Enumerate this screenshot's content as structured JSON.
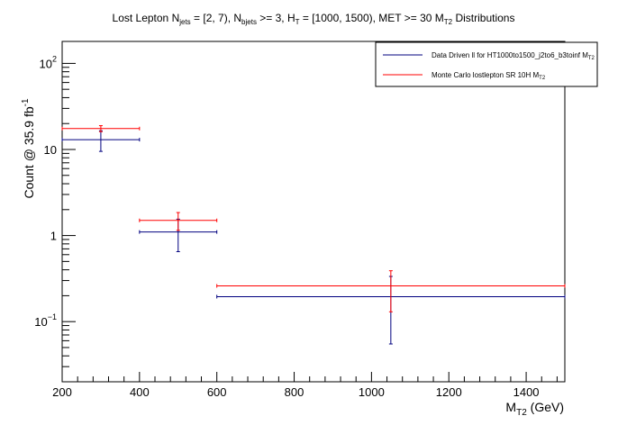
{
  "chart_data": {
    "type": "histogram-errorbars",
    "title": {
      "p1": "Lost Lepton N",
      "s1": "jets",
      "p2": " = [2, 7), N",
      "s2": "bjets",
      "p3": " >= 3, H",
      "s3": "T",
      "p4": " = [1000, 1500), MET >= 30 M",
      "s4": "T2",
      "p5": " Distributions"
    },
    "xlabel": {
      "main": "M",
      "sub": "T2",
      "unit": " (GeV)"
    },
    "ylabel": {
      "main": "Count @ 35.9 fb",
      "sup": "-1"
    },
    "xlim": [
      200,
      1500
    ],
    "ylim": [
      0.02,
      180
    ],
    "yscale": "log",
    "x_ticks": [
      "200",
      "400",
      "600",
      "800",
      "1000",
      "1200",
      "1400"
    ],
    "y_ticks": [
      {
        "value": 0.1,
        "base": "10",
        "exp": "−1"
      },
      {
        "value": 1,
        "base": "1",
        "exp": ""
      },
      {
        "value": 10,
        "base": "10",
        "exp": ""
      },
      {
        "value": 100,
        "base": "10",
        "exp": "2"
      }
    ],
    "series": [
      {
        "name": "Data Driven ll for HT1000to1500_j2to6_b3toinf M",
        "name_sub": "T2",
        "color": "#00007f",
        "bins": [
          {
            "xlow": 200,
            "xhigh": 400,
            "x": 300,
            "y": 13.0,
            "err_low": 3.5,
            "err_high": 3.5
          },
          {
            "xlow": 400,
            "xhigh": 600,
            "x": 500,
            "y": 1.1,
            "err_low": 0.45,
            "err_high": 0.45
          },
          {
            "xlow": 600,
            "xhigh": 1500,
            "x": 1050,
            "y": 0.195,
            "err_low": 0.14,
            "err_high": 0.14
          }
        ]
      },
      {
        "name": "Monte Carlo lostlepton SR 10H M",
        "name_sub": "T2",
        "color": "#ff0000",
        "bins": [
          {
            "xlow": 200,
            "xhigh": 400,
            "x": 300,
            "y": 17.5,
            "err_low": 1.4,
            "err_high": 1.4
          },
          {
            "xlow": 400,
            "xhigh": 600,
            "x": 500,
            "y": 1.5,
            "err_low": 0.35,
            "err_high": 0.35
          },
          {
            "xlow": 600,
            "xhigh": 1500,
            "x": 1050,
            "y": 0.26,
            "err_low": 0.13,
            "err_high": 0.13
          }
        ]
      }
    ],
    "legend_position": "top-right"
  }
}
